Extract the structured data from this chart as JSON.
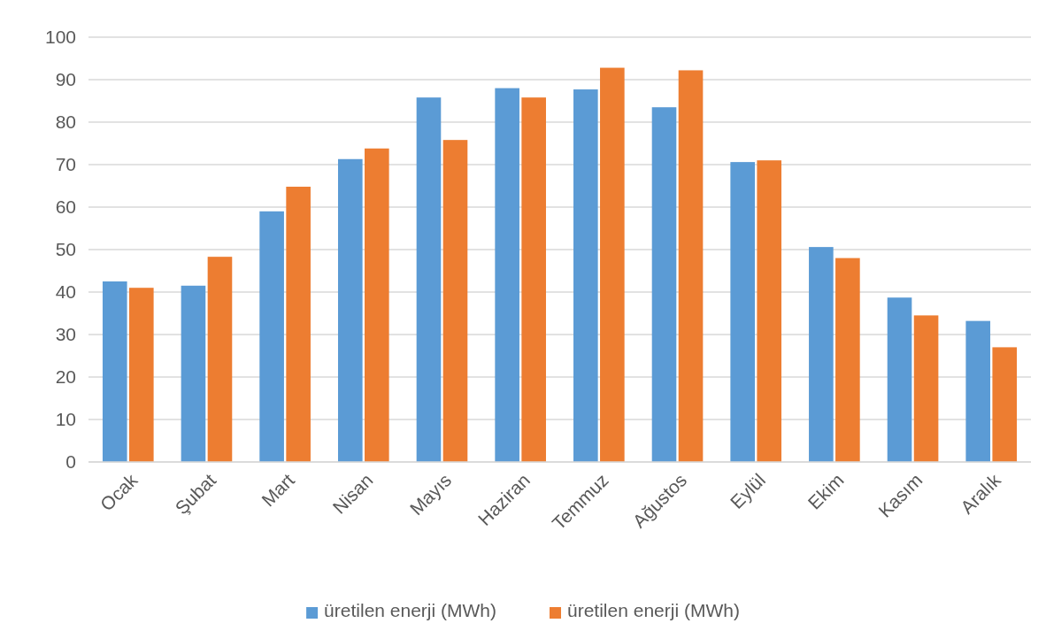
{
  "chart_data": {
    "type": "bar",
    "categories": [
      "Ocak",
      "Şubat",
      "Mart",
      "Nisan",
      "Mayıs",
      "Haziran",
      "Temmuz",
      "Ağustos",
      "Eylül",
      "Ekim",
      "Kasım",
      "Aralık"
    ],
    "series": [
      {
        "name": "üretilen enerji (MWh)",
        "color": "#5b9bd5",
        "values": [
          42.5,
          41.5,
          59,
          71.3,
          85.8,
          88,
          87.7,
          83.5,
          70.6,
          50.6,
          38.7,
          33.2
        ]
      },
      {
        "name": "üretilen enerji (MWh)",
        "color": "#ed7d31",
        "values": [
          41,
          48.3,
          64.8,
          73.8,
          75.8,
          85.8,
          92.8,
          92.2,
          71,
          48,
          34.5,
          27
        ]
      }
    ],
    "ylim": [
      0,
      100
    ],
    "yticks": [
      0,
      10,
      20,
      30,
      40,
      50,
      60,
      70,
      80,
      90,
      100
    ],
    "grid": "y",
    "legend": "bottom"
  }
}
